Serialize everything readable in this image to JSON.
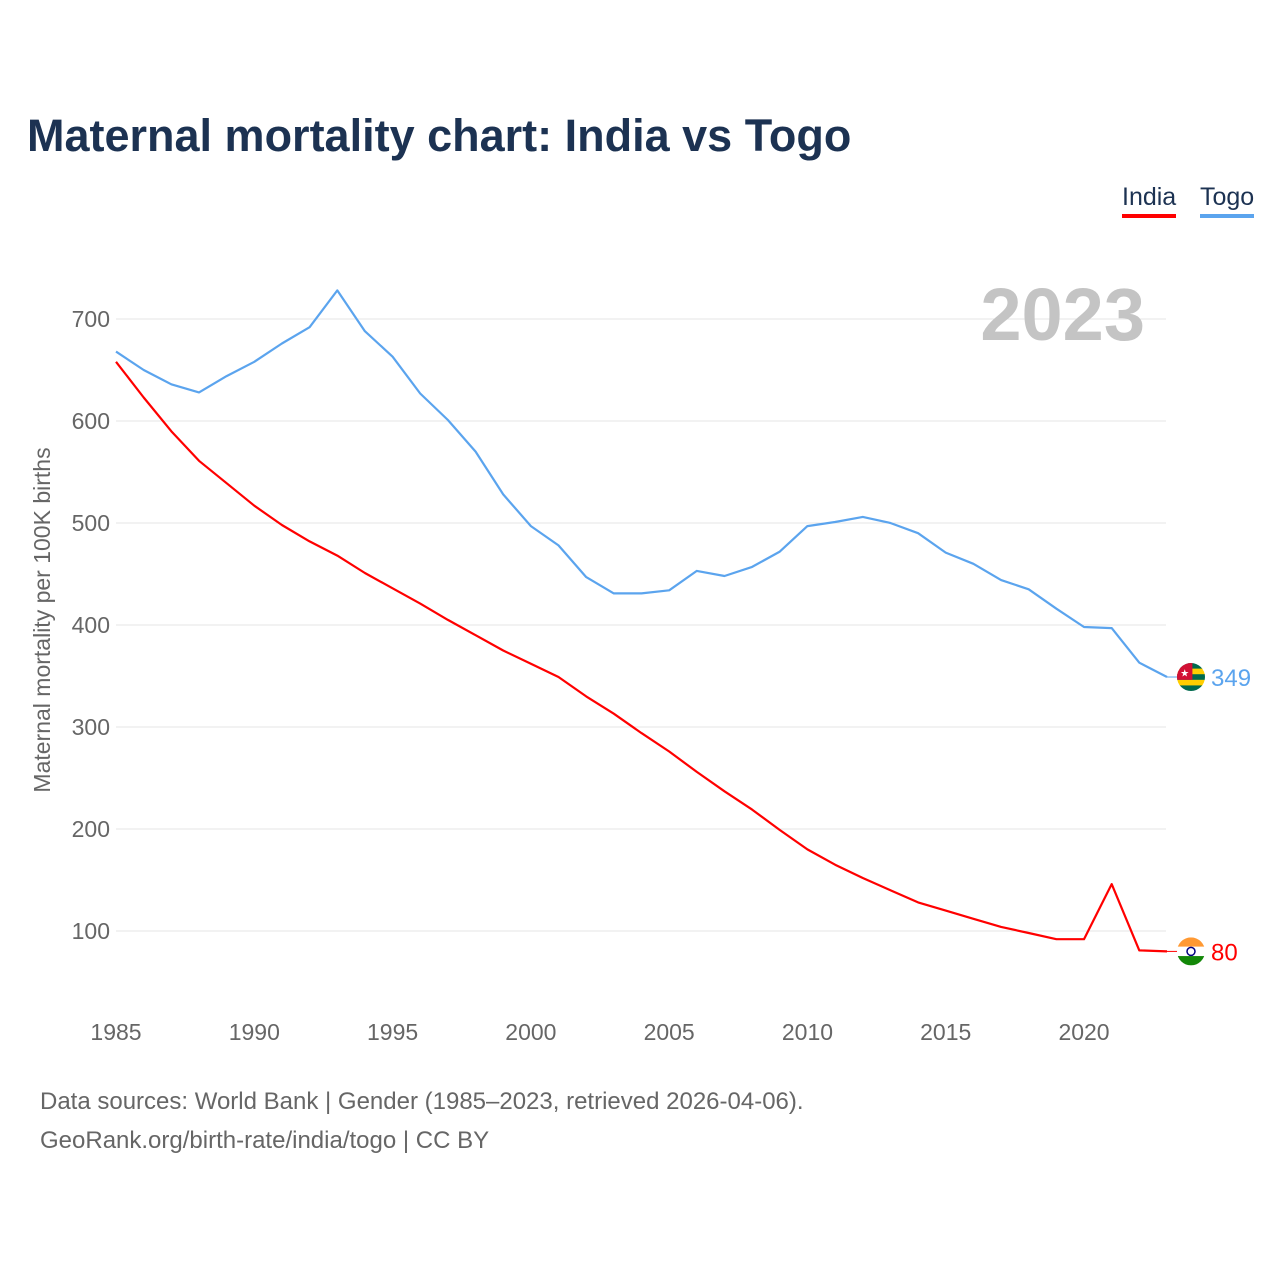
{
  "chart_data": {
    "type": "line",
    "title": "Maternal mortality chart: India vs Togo",
    "ylabel": "Maternal mortality per 100K births",
    "xlabel": "",
    "year_label": "2023",
    "xlim": [
      1985,
      2023
    ],
    "ylim": [
      40,
      740
    ],
    "x_ticks": [
      1985,
      1990,
      1995,
      2000,
      2005,
      2010,
      2015,
      2020
    ],
    "y_ticks": [
      100,
      200,
      300,
      400,
      500,
      600,
      700
    ],
    "grid": true,
    "legend_position": "top-right",
    "x": [
      1985,
      1986,
      1987,
      1988,
      1989,
      1990,
      1991,
      1992,
      1993,
      1994,
      1995,
      1996,
      1997,
      1998,
      1999,
      2000,
      2001,
      2002,
      2003,
      2004,
      2005,
      2006,
      2007,
      2008,
      2009,
      2010,
      2011,
      2012,
      2013,
      2014,
      2015,
      2016,
      2017,
      2018,
      2019,
      2020,
      2021,
      2022,
      2023
    ],
    "series": [
      {
        "name": "India",
        "color": "#ff0000",
        "end_label": "80",
        "values": [
          658,
          623,
          590,
          561,
          539,
          517,
          498,
          482,
          468,
          451,
          436,
          421,
          405,
          390,
          375,
          362,
          349,
          330,
          313,
          294,
          276,
          256,
          237,
          219,
          199,
          180,
          165,
          152,
          140,
          128,
          120,
          112,
          104,
          98,
          92,
          92,
          146,
          81,
          80
        ]
      },
      {
        "name": "Togo",
        "color": "#5ba4ee",
        "end_label": "349",
        "values": [
          668,
          650,
          636,
          628,
          644,
          658,
          676,
          692,
          728,
          688,
          663,
          627,
          601,
          570,
          528,
          497,
          478,
          447,
          431,
          431,
          434,
          453,
          448,
          457,
          472,
          497,
          501,
          506,
          500,
          490,
          471,
          460,
          444,
          435,
          416,
          398,
          397,
          363,
          349
        ]
      }
    ]
  },
  "footer": {
    "line1": "Data sources: World Bank | Gender (1985–2023, retrieved 2026-04-06).",
    "line2": "GeoRank.org/birth-rate/india/togo | CC BY"
  }
}
